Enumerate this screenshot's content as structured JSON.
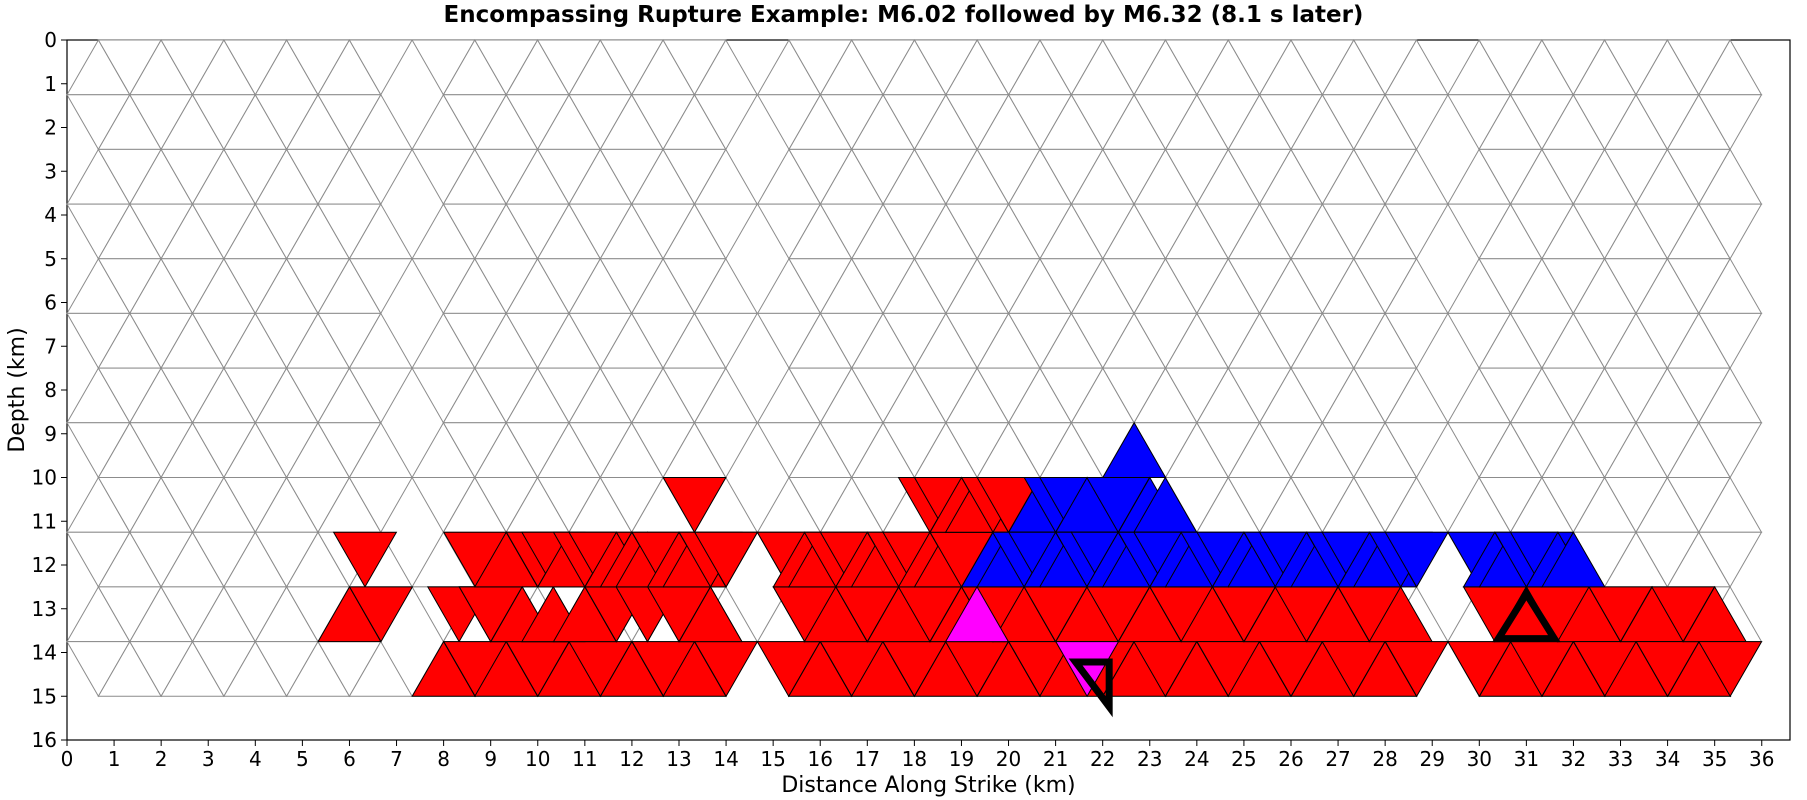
{
  "chart_data": {
    "type": "heatmap",
    "title": "Encompassing Rupture Example: M6.02 followed by M6.32 (8.1 s later)",
    "xlabel": "Distance Along Strike (km)",
    "ylabel": "Depth (km)",
    "xlim": [
      0,
      36.6
    ],
    "ylim": [
      16,
      0
    ],
    "xticks": [
      0,
      1,
      2,
      3,
      4,
      5,
      6,
      7,
      8,
      9,
      10,
      11,
      12,
      13,
      14,
      15,
      16,
      17,
      18,
      19,
      20,
      21,
      22,
      23,
      24,
      25,
      26,
      27,
      28,
      29,
      30,
      31,
      32,
      33,
      34,
      35,
      36
    ],
    "yticks": [
      0,
      1,
      2,
      3,
      4,
      5,
      6,
      7,
      8,
      9,
      10,
      11,
      12,
      13,
      14,
      15,
      16
    ],
    "mesh": {
      "element": "triangle",
      "triangle_width_km": 1.333,
      "row_depths_km": [
        0,
        1.25,
        2.5,
        3.75,
        5,
        6.25,
        7.5,
        8.75,
        10,
        11.25,
        12.5,
        13.75,
        15
      ],
      "segments": [
        {
          "x_range_km": [
            0,
            7.33
          ]
        },
        {
          "x_range_km": [
            7.33,
            14.67
          ]
        },
        {
          "x_range_km": [
            14.67,
            29.33
          ]
        },
        {
          "x_range_km": [
            29.33,
            36.6
          ]
        }
      ]
    },
    "legend": [],
    "colors": {
      "first_event": "#ff0000",
      "second_event": "#0000ff",
      "both_events": "#ff00ff",
      "mesh_edge": "#8c8c8c",
      "hypocenter_outline": "#000000"
    },
    "series": [
      {
        "event": "first",
        "magnitude": 6.02,
        "color": "#ff0000",
        "patches": [
          [
            6.0,
            14
          ],
          [
            6.33,
            13
          ],
          [
            6.67,
            14
          ],
          [
            8.0,
            15
          ],
          [
            8.33,
            14
          ],
          [
            8.67,
            15
          ],
          [
            9.0,
            14
          ],
          [
            9.33,
            15
          ],
          [
            9.67,
            14
          ],
          [
            10.0,
            15
          ],
          [
            10.33,
            14
          ],
          [
            10.67,
            15
          ],
          [
            11.0,
            14
          ],
          [
            11.33,
            15
          ],
          [
            11.67,
            14
          ],
          [
            12.0,
            15
          ],
          [
            12.33,
            14
          ],
          [
            12.67,
            15
          ],
          [
            13.0,
            14
          ],
          [
            13.33,
            15
          ],
          [
            13.67,
            14
          ],
          [
            14.0,
            15
          ],
          [
            8.67,
            13
          ],
          [
            9.0,
            14
          ],
          [
            9.33,
            13
          ],
          [
            9.67,
            14
          ],
          [
            10.0,
            13
          ],
          [
            10.33,
            14
          ],
          [
            10.67,
            13
          ],
          [
            11.0,
            14
          ],
          [
            11.33,
            13
          ],
          [
            11.67,
            14
          ],
          [
            12.0,
            13
          ],
          [
            12.33,
            14
          ],
          [
            12.67,
            13
          ],
          [
            13.0,
            14
          ],
          [
            13.33,
            13
          ],
          [
            13.67,
            14
          ],
          [
            14.0,
            13
          ],
          [
            10.0,
            13
          ],
          [
            10.33,
            12
          ],
          [
            10.67,
            13
          ],
          [
            11.0,
            12
          ],
          [
            11.33,
            13
          ],
          [
            11.67,
            12
          ],
          [
            12.0,
            13
          ],
          [
            12.33,
            12
          ],
          [
            12.67,
            13
          ],
          [
            13.0,
            12
          ],
          [
            13.33,
            13
          ],
          [
            13.67,
            12
          ],
          [
            14.0,
            13
          ],
          [
            13.33,
            11
          ],
          [
            15.33,
            15
          ],
          [
            15.67,
            14
          ],
          [
            16.0,
            15
          ],
          [
            16.33,
            14
          ],
          [
            16.67,
            15
          ],
          [
            17.0,
            14
          ],
          [
            17.33,
            15
          ],
          [
            17.67,
            14
          ],
          [
            18.0,
            15
          ],
          [
            18.33,
            14
          ],
          [
            18.67,
            15
          ],
          [
            19.0,
            14
          ],
          [
            19.33,
            15
          ],
          [
            19.67,
            14
          ],
          [
            20.0,
            15
          ],
          [
            20.33,
            14
          ],
          [
            20.67,
            15
          ],
          [
            21.0,
            14
          ],
          [
            21.33,
            15
          ],
          [
            21.67,
            14
          ],
          [
            22.0,
            15
          ],
          [
            22.33,
            14
          ],
          [
            22.67,
            15
          ],
          [
            23.0,
            14
          ],
          [
            23.33,
            15
          ],
          [
            23.67,
            14
          ],
          [
            24.0,
            15
          ],
          [
            24.33,
            14
          ],
          [
            24.67,
            15
          ],
          [
            25.0,
            14
          ],
          [
            25.33,
            15
          ],
          [
            25.67,
            14
          ],
          [
            26.0,
            15
          ],
          [
            26.33,
            14
          ],
          [
            26.67,
            15
          ],
          [
            27.0,
            14
          ],
          [
            27.33,
            15
          ],
          [
            27.67,
            14
          ],
          [
            28.0,
            15
          ],
          [
            28.33,
            14
          ],
          [
            28.67,
            15
          ],
          [
            15.33,
            13
          ],
          [
            15.67,
            14
          ],
          [
            16.0,
            13
          ],
          [
            16.33,
            14
          ],
          [
            16.67,
            13
          ],
          [
            17.0,
            14
          ],
          [
            17.33,
            13
          ],
          [
            17.67,
            14
          ],
          [
            18.0,
            13
          ],
          [
            18.33,
            14
          ],
          [
            18.67,
            13
          ],
          [
            15.33,
            13
          ],
          [
            15.67,
            12
          ],
          [
            16.0,
            13
          ],
          [
            16.33,
            12
          ],
          [
            16.67,
            13
          ],
          [
            17.0,
            12
          ],
          [
            17.33,
            13
          ],
          [
            17.67,
            12
          ],
          [
            18.0,
            13
          ],
          [
            18.33,
            12
          ],
          [
            18.67,
            13
          ],
          [
            19.0,
            12
          ],
          [
            18.33,
            11
          ],
          [
            18.67,
            11
          ],
          [
            19.0,
            11
          ],
          [
            19.33,
            11
          ],
          [
            19.67,
            11
          ],
          [
            20.0,
            11
          ],
          [
            30.0,
            15
          ],
          [
            30.33,
            14
          ],
          [
            30.67,
            15
          ],
          [
            31.0,
            14
          ],
          [
            31.33,
            15
          ],
          [
            31.67,
            14
          ],
          [
            32.0,
            15
          ],
          [
            32.33,
            14
          ],
          [
            32.67,
            15
          ],
          [
            33.0,
            14
          ],
          [
            33.33,
            15
          ],
          [
            33.67,
            14
          ],
          [
            34.0,
            15
          ],
          [
            34.33,
            14
          ],
          [
            34.67,
            15
          ],
          [
            35.0,
            14
          ],
          [
            35.33,
            15
          ]
        ]
      },
      {
        "event": "second",
        "magnitude": 6.32,
        "delay_s": 8.1,
        "color": "#0000ff",
        "patches": [
          [
            20.67,
            11
          ],
          [
            21.0,
            11
          ],
          [
            21.33,
            11
          ],
          [
            21.67,
            11
          ],
          [
            20.0,
            12
          ],
          [
            20.33,
            12
          ],
          [
            20.67,
            12
          ],
          [
            21.0,
            12
          ],
          [
            21.33,
            12
          ],
          [
            21.67,
            12
          ],
          [
            22.0,
            12
          ],
          [
            19.67,
            13
          ],
          [
            20.0,
            13
          ],
          [
            20.33,
            13
          ],
          [
            20.67,
            13
          ],
          [
            21.0,
            13
          ],
          [
            21.33,
            13
          ],
          [
            21.67,
            13
          ],
          [
            22.0,
            13
          ],
          [
            22.67,
            10
          ],
          [
            22.33,
            11
          ],
          [
            23.0,
            11
          ],
          [
            23.33,
            11
          ],
          [
            22.33,
            12
          ],
          [
            22.67,
            12
          ],
          [
            23.0,
            12
          ],
          [
            23.33,
            12
          ],
          [
            23.67,
            12
          ],
          [
            24.0,
            12
          ],
          [
            22.33,
            13
          ],
          [
            22.67,
            13
          ],
          [
            23.0,
            13
          ],
          [
            23.33,
            13
          ],
          [
            23.67,
            13
          ],
          [
            24.0,
            13
          ],
          [
            24.33,
            13
          ],
          [
            24.67,
            13
          ],
          [
            25.0,
            13
          ],
          [
            25.33,
            13
          ],
          [
            25.67,
            13
          ],
          [
            26.0,
            13
          ],
          [
            26.33,
            13
          ],
          [
            26.67,
            13
          ],
          [
            27.0,
            13
          ],
          [
            27.33,
            13
          ],
          [
            27.67,
            13
          ],
          [
            28.0,
            13
          ],
          [
            28.33,
            13
          ],
          [
            28.67,
            13
          ],
          [
            30.0,
            13
          ],
          [
            30.33,
            13
          ],
          [
            30.67,
            13
          ],
          [
            31.0,
            13
          ],
          [
            31.33,
            13
          ],
          [
            31.67,
            13
          ],
          [
            32.0,
            13
          ]
        ]
      },
      {
        "event": "both",
        "color": "#ff00ff",
        "patches": [
          [
            19.33,
            14
          ],
          [
            21.67,
            15
          ]
        ]
      }
    ],
    "hypocenters": [
      {
        "event": "first",
        "x": 21.9,
        "depth": 14.6,
        "shape": "triangle-down"
      },
      {
        "event": "second",
        "x": 31.0,
        "depth": 13.3,
        "shape": "triangle-up"
      }
    ]
  }
}
